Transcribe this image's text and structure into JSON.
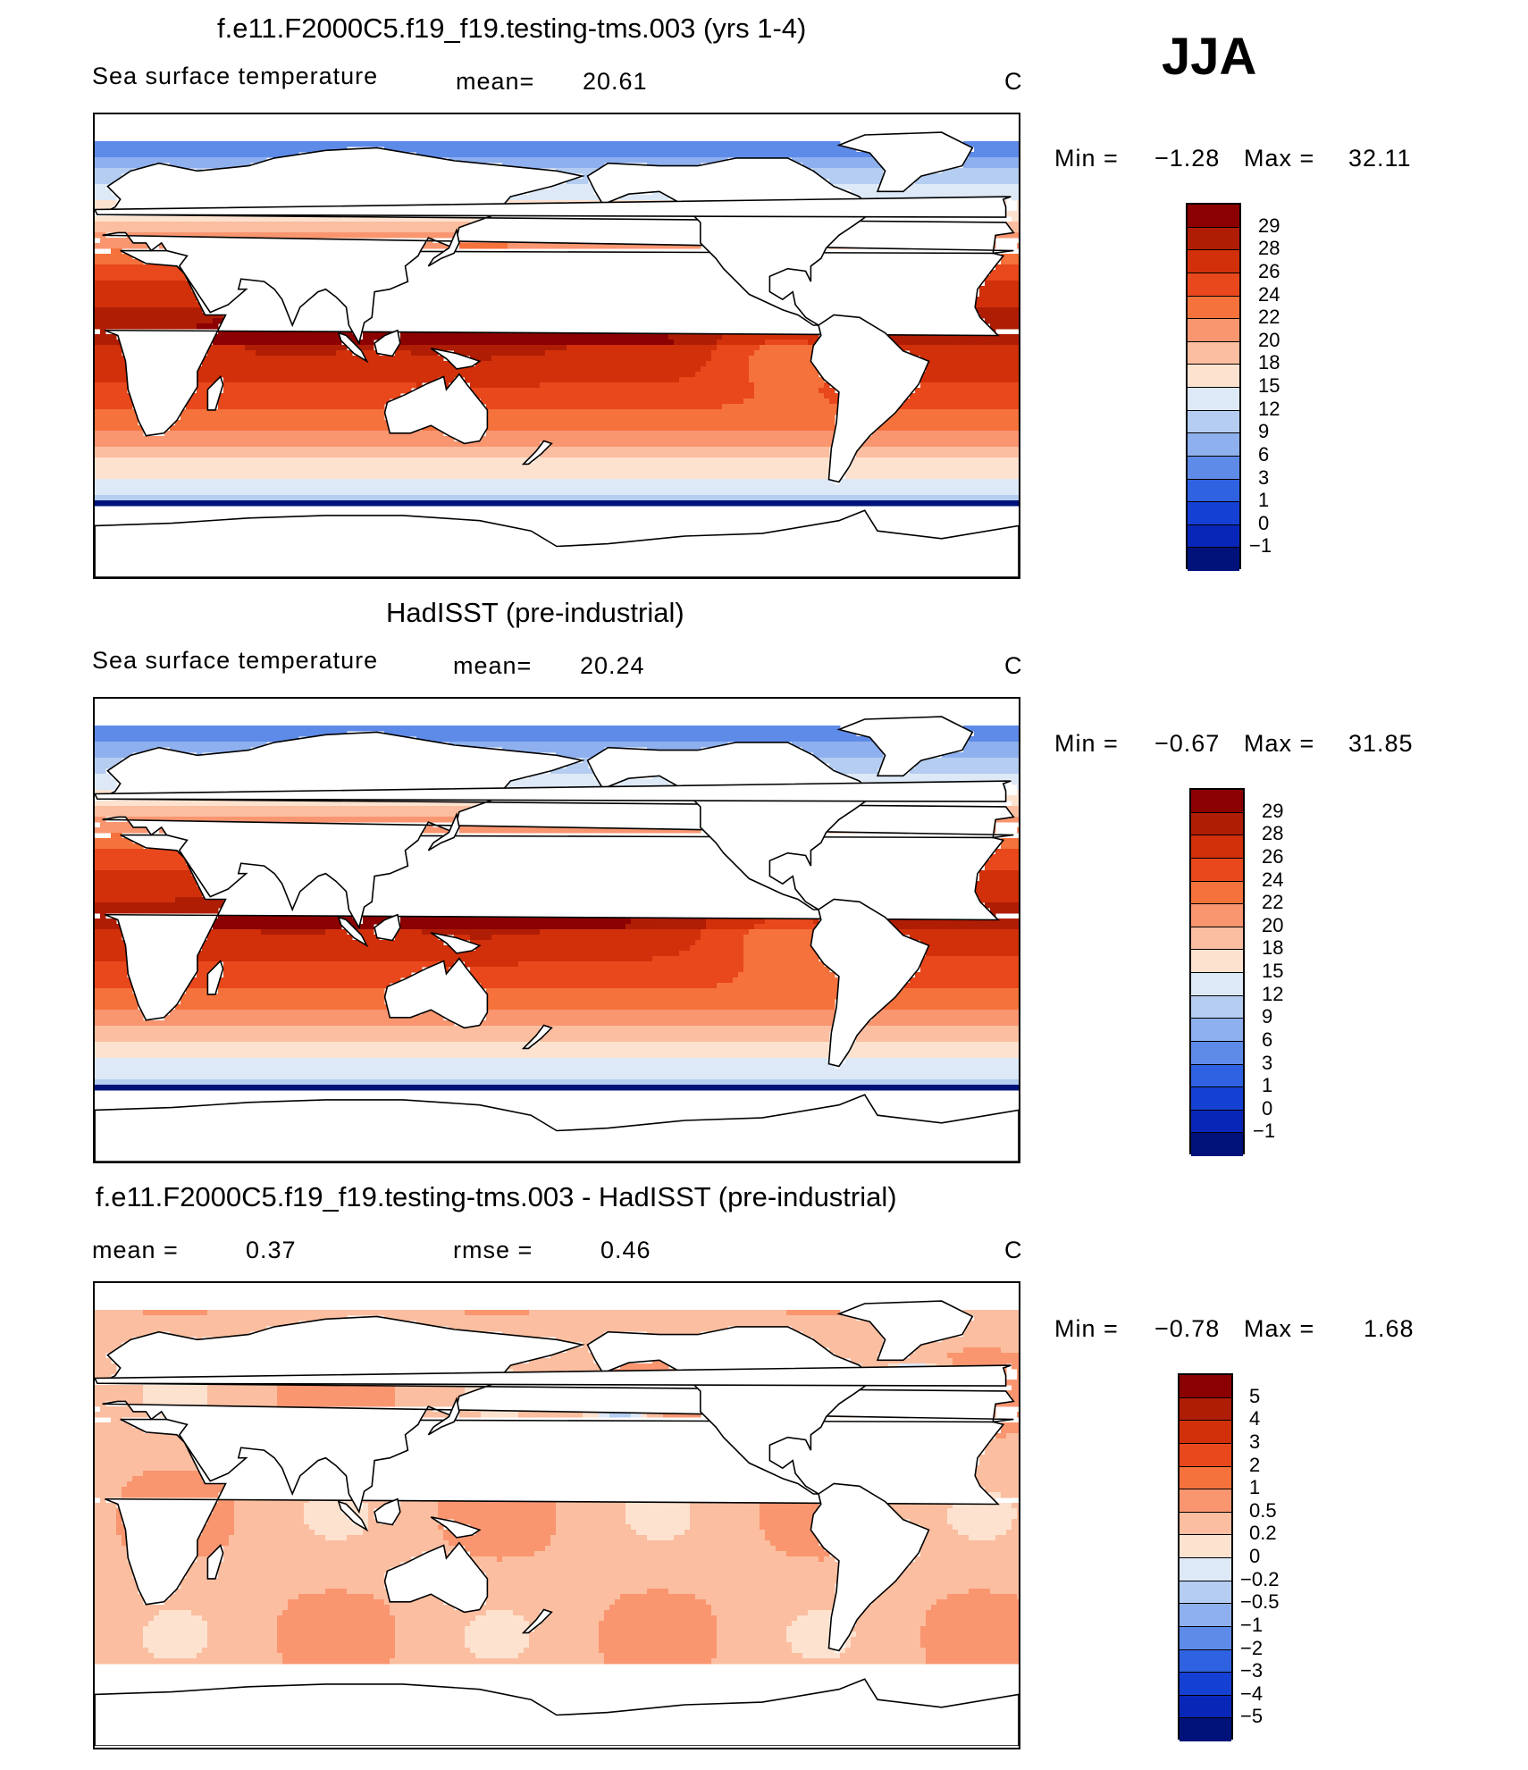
{
  "season": "JJA",
  "chart_data": [
    {
      "type": "heatmap",
      "title": "f.e11.F2000C5.f19_f19.testing-tms.003 (yrs 1-4)",
      "variable": "Sea surface temperature",
      "mean_label": "mean=",
      "mean_value": "20.61",
      "units": "C",
      "min_label": "Min =",
      "min_value": "−1.28",
      "max_label": "Max =",
      "max_value": "32.11",
      "levels": [
        "29",
        "28",
        "26",
        "24",
        "22",
        "20",
        "18",
        "15",
        "12",
        "9",
        "6",
        "3",
        "1",
        "0",
        "−1"
      ],
      "colors": [
        "#8b0000",
        "#b01d05",
        "#d1300a",
        "#e8481c",
        "#f5723c",
        "#f99670",
        "#fbbea0",
        "#fde2cf",
        "#dde9f7",
        "#b4cdf1",
        "#8fb0ee",
        "#5f8be8",
        "#2f62e0",
        "#1540d4",
        "#0827b8",
        "#00127a"
      ]
    },
    {
      "type": "heatmap",
      "title": "HadISST (pre-industrial)",
      "variable": "Sea surface temperature",
      "mean_label": "mean=",
      "mean_value": "20.24",
      "units": "C",
      "min_label": "Min =",
      "min_value": "−0.67",
      "max_label": "Max =",
      "max_value": "31.85",
      "levels": [
        "29",
        "28",
        "26",
        "24",
        "22",
        "20",
        "18",
        "15",
        "12",
        "9",
        "6",
        "3",
        "1",
        "0",
        "−1"
      ],
      "colors": [
        "#8b0000",
        "#b01d05",
        "#d1300a",
        "#e8481c",
        "#f5723c",
        "#f99670",
        "#fbbea0",
        "#fde2cf",
        "#dde9f7",
        "#b4cdf1",
        "#8fb0ee",
        "#5f8be8",
        "#2f62e0",
        "#1540d4",
        "#0827b8",
        "#00127a"
      ]
    },
    {
      "type": "heatmap",
      "title": "f.e11.F2000C5.f19_f19.testing-tms.003 - HadISST (pre-industrial)",
      "mean_label": "mean =",
      "mean_value": "0.37",
      "rmse_label": "rmse =",
      "rmse_value": "0.46",
      "units": "C",
      "min_label": "Min =",
      "min_value": "−0.78",
      "max_label": "Max =",
      "max_value": "1.68",
      "levels": [
        "5",
        "4",
        "3",
        "2",
        "1",
        "0.5",
        "0.2",
        "0",
        "−0.2",
        "−0.5",
        "−1",
        "−2",
        "−3",
        "−4",
        "−5"
      ],
      "colors": [
        "#8b0000",
        "#b01d05",
        "#d1300a",
        "#e8481c",
        "#f5723c",
        "#f99670",
        "#fbbea0",
        "#fde2cf",
        "#dde9f7",
        "#b4cdf1",
        "#8fb0ee",
        "#5f8be8",
        "#2f62e0",
        "#1540d4",
        "#0827b8",
        "#00127a"
      ]
    }
  ]
}
